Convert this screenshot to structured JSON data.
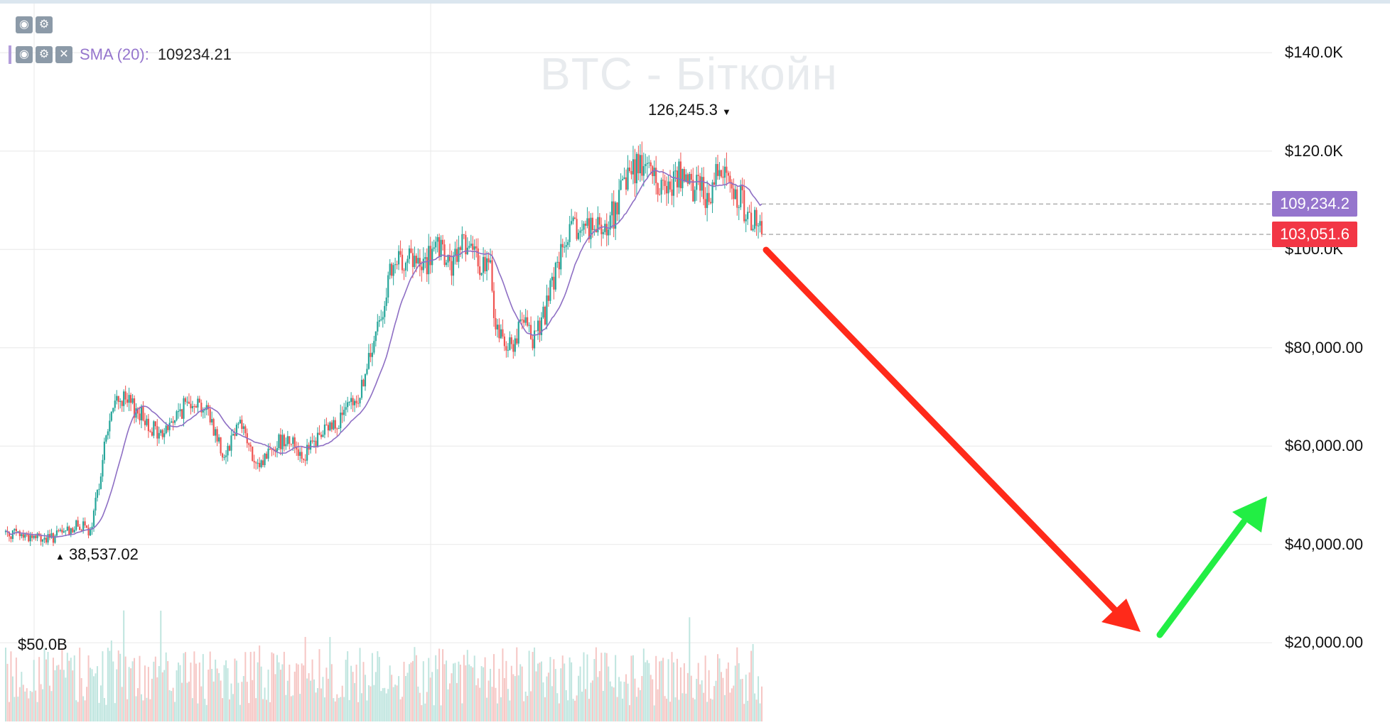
{
  "chart_data": {
    "type": "candlestick",
    "title": "BTC - Біткойн",
    "indicator": {
      "icons": [
        "eye-icon",
        "gear-icon",
        "close-icon"
      ],
      "label": "SMA (20):",
      "value": "109234.21"
    },
    "top_controls": [
      "eye-icon",
      "gear-icon"
    ],
    "y_ticks": [
      "$140.0K",
      "$120.0K",
      "$100.0K",
      "$80,000.00",
      "$60,000.00",
      "$40,000.00",
      "$20,000.00"
    ],
    "y_tick_values": [
      140000,
      120000,
      100000,
      80000,
      60000,
      40000,
      20000
    ],
    "ylim": [
      4000,
      150000
    ],
    "grid": true,
    "volume_label": "$50.0B",
    "max_annotation": {
      "text": "126,245.3",
      "marker": "▼",
      "value": 126245.3
    },
    "min_annotation": {
      "text": "38,537.02",
      "marker": "▲",
      "value": 38537.02
    },
    "last_sma": {
      "text": "109,234.2",
      "value": 109234.2,
      "color": "#9575cd"
    },
    "last_price": {
      "text": "103,051.6",
      "value": 103051.6,
      "color": "#f23645"
    },
    "colors": {
      "up": "#26a69a",
      "down": "#ef5350",
      "sma": "#8e6fc4",
      "arrow_down": "#ff2a1a",
      "arrow_up": "#22ee44",
      "grid": "#ececec"
    },
    "price_path": [
      [
        0,
        42500
      ],
      [
        8,
        41000
      ],
      [
        14,
        44000
      ],
      [
        16,
        42000
      ],
      [
        19,
        63000
      ],
      [
        21,
        70000
      ],
      [
        25,
        67000
      ],
      [
        29,
        62000
      ],
      [
        32,
        66000
      ],
      [
        35,
        70000
      ],
      [
        38,
        67000
      ],
      [
        41,
        58000
      ],
      [
        44,
        66000
      ],
      [
        47,
        55000
      ],
      [
        50,
        60000
      ],
      [
        53,
        62000
      ],
      [
        56,
        58000
      ],
      [
        59,
        62000
      ],
      [
        63,
        66000
      ],
      [
        66,
        69000
      ],
      [
        69,
        80000
      ],
      [
        72,
        94000
      ],
      [
        75,
        99000
      ],
      [
        78,
        96000
      ],
      [
        81,
        100000
      ],
      [
        84,
        96000
      ],
      [
        86,
        103000
      ],
      [
        88,
        98000
      ],
      [
        91,
        96000
      ],
      [
        92,
        84000
      ],
      [
        95,
        80000
      ],
      [
        97,
        85000
      ],
      [
        99,
        82000
      ],
      [
        101,
        86000
      ],
      [
        104,
        98000
      ],
      [
        106,
        103000
      ],
      [
        109,
        105000
      ],
      [
        112,
        103000
      ],
      [
        115,
        109000
      ],
      [
        117,
        116000
      ],
      [
        120,
        118000
      ],
      [
        122,
        114000
      ],
      [
        124,
        112000
      ],
      [
        126,
        116000
      ],
      [
        128,
        112000
      ],
      [
        130,
        114000
      ],
      [
        132,
        110000
      ],
      [
        134,
        118000
      ],
      [
        136,
        114000
      ],
      [
        138,
        110000
      ],
      [
        140,
        106000
      ],
      [
        142,
        103051.6
      ]
    ],
    "volume_level": 0.55
  }
}
